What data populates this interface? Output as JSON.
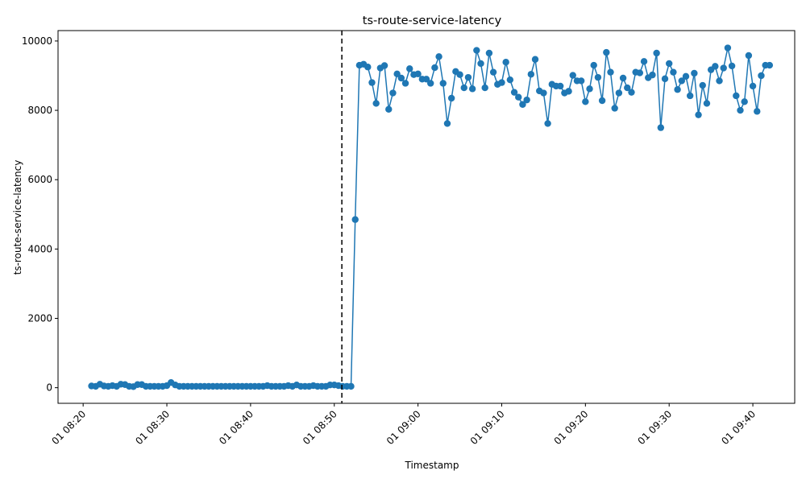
{
  "chart_data": {
    "type": "line",
    "title": "ts-route-service-latency",
    "xlabel": "Timestamp",
    "ylabel": "ts-route-service-latency",
    "x_axis_type": "datetime",
    "x_start": "01 08:21",
    "x_step_minutes": 0.5,
    "xlim": [
      "01 08:17",
      "01 09:45"
    ],
    "ylim": [
      -450,
      10300
    ],
    "x_ticks": [
      "01 08:20",
      "01 08:30",
      "01 08:40",
      "01 08:50",
      "01 09:00",
      "01 09:10",
      "01 09:20",
      "01 09:30",
      "01 09:40"
    ],
    "y_ticks": [
      0,
      2000,
      4000,
      6000,
      8000,
      10000
    ],
    "vline_label_time": "01 08:51",
    "series_color": "#1f77b4",
    "grid": false,
    "legend": "none",
    "series": [
      {
        "marker": "circle",
        "values": [
          50,
          40,
          100,
          50,
          40,
          60,
          40,
          100,
          90,
          40,
          30,
          90,
          90,
          40,
          40,
          40,
          40,
          40,
          60,
          150,
          80,
          40,
          40,
          40,
          40,
          40,
          40,
          40,
          40,
          40,
          40,
          40,
          40,
          40,
          40,
          40,
          40,
          40,
          40,
          40,
          40,
          40,
          60,
          40,
          40,
          40,
          40,
          60,
          40,
          80,
          40,
          40,
          40,
          60,
          40,
          40,
          40,
          80,
          80,
          60,
          40,
          40,
          40,
          4850,
          9300,
          9330,
          9250,
          8800,
          8200,
          9220,
          9290,
          8030,
          8500,
          9050,
          8930,
          8780,
          9200,
          9030,
          9050,
          8900,
          8900,
          8780,
          9230,
          9550,
          8780,
          7620,
          8350,
          9120,
          9030,
          8650,
          8950,
          8620,
          9730,
          9350,
          8650,
          9650,
          9100,
          8750,
          8800,
          9390,
          8880,
          8520,
          8380,
          8170,
          8300,
          9040,
          9470,
          8560,
          8500,
          7620,
          8750,
          8700,
          8700,
          8500,
          8550,
          9010,
          8850,
          8850,
          8250,
          8620,
          9300,
          8950,
          8280,
          9670,
          9100,
          8060,
          8500,
          8930,
          8650,
          8520,
          9100,
          9080,
          9410,
          8940,
          9020,
          9650,
          7500,
          8910,
          9350,
          9100,
          8600,
          8850,
          8980,
          8420,
          9070,
          7870,
          8720,
          8200,
          9170,
          9270,
          8850,
          9220,
          9800,
          9280,
          8420,
          8000,
          8250,
          9580,
          8700,
          7970,
          9000,
          9300,
          9300
        ]
      }
    ]
  }
}
